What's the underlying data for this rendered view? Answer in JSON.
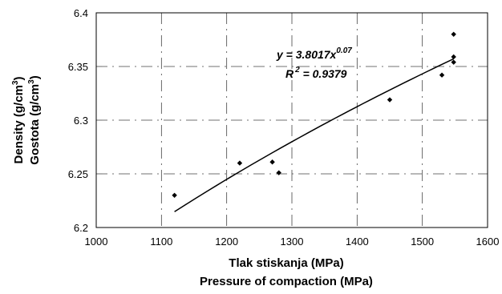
{
  "chart_data": {
    "type": "scatter",
    "xlim": [
      1000,
      1600
    ],
    "ylim": [
      6.2,
      6.4
    ],
    "x_ticks": [
      "1000",
      "1100",
      "1200",
      "1300",
      "1400",
      "1500",
      "1600"
    ],
    "y_ticks": [
      "6.2",
      "6.25",
      "6.3",
      "6.35",
      "6.4"
    ],
    "xlabel_line1": "Tlak stiskanja (MPa)",
    "xlabel_line2": "Pressure of compaction (MPa)",
    "ylabel_line1": "Density (g/cm",
    "ylabel_line2": "Gostota (g/cm",
    "ylabel_sup": "3",
    "ylabel_close": ")",
    "grid": true,
    "series": [
      {
        "points": [
          [
            1120,
            6.23
          ],
          [
            1220,
            6.26
          ],
          [
            1270,
            6.261
          ],
          [
            1280,
            6.251
          ],
          [
            1450,
            6.319
          ],
          [
            1530,
            6.342
          ],
          [
            1548,
            6.38
          ],
          [
            1548,
            6.359
          ],
          [
            1548,
            6.354
          ]
        ]
      }
    ],
    "trendline": {
      "a": 3.8017,
      "b": 0.07,
      "x_range": [
        1120,
        1548
      ],
      "equation_prefix": "y = 3.8017x",
      "equation_exponent": "0.07",
      "r2_prefix": "R",
      "r2_sup": "2",
      "r2_value": " = 0.9379"
    }
  }
}
